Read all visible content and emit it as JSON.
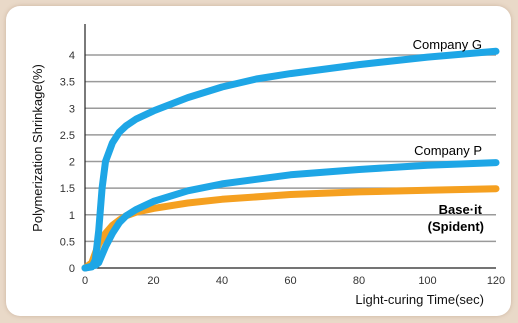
{
  "chart_data": {
    "type": "line",
    "title": "",
    "xlabel": "Light-curing Time(sec)",
    "ylabel": "Polymerization Shrinkage(%)",
    "xlim": [
      0,
      120
    ],
    "ylim": [
      0,
      4.5
    ],
    "x_ticks": [
      0,
      20,
      40,
      60,
      80,
      100,
      120
    ],
    "y_ticks": [
      0,
      0.5,
      1,
      1.5,
      2,
      2.5,
      3,
      3.5,
      4
    ],
    "x_tick_labels": [
      "0",
      "20",
      "40",
      "60",
      "80",
      "100",
      "120"
    ],
    "y_tick_labels": [
      "0",
      "0.5",
      "1",
      "1.5",
      "2",
      "2.5",
      "3",
      "3.5",
      "4"
    ],
    "grid": "horizontal",
    "series": [
      {
        "name": "Company G",
        "color": "#1ea6e6",
        "x": [
          0,
          2,
          3,
          4,
          5,
          6,
          8,
          10,
          12,
          15,
          20,
          30,
          40,
          50,
          60,
          80,
          100,
          120
        ],
        "y": [
          0,
          0.02,
          0.15,
          0.7,
          1.5,
          2.0,
          2.35,
          2.55,
          2.67,
          2.8,
          2.95,
          3.2,
          3.4,
          3.55,
          3.65,
          3.82,
          3.96,
          4.07
        ]
      },
      {
        "name": "Company P",
        "color": "#1ea6e6",
        "x": [
          0,
          3,
          4,
          6,
          8,
          10,
          12,
          15,
          20,
          30,
          40,
          60,
          80,
          100,
          120
        ],
        "y": [
          0,
          0.05,
          0.1,
          0.4,
          0.65,
          0.85,
          0.98,
          1.1,
          1.25,
          1.45,
          1.58,
          1.75,
          1.85,
          1.93,
          1.98
        ]
      },
      {
        "name": "Base·it\n(Spident)",
        "color": "#f5a020",
        "x": [
          0,
          2,
          4,
          6,
          8,
          10,
          12,
          15,
          20,
          30,
          40,
          60,
          80,
          100,
          120
        ],
        "y": [
          0,
          0.1,
          0.45,
          0.65,
          0.8,
          0.9,
          0.98,
          1.05,
          1.12,
          1.22,
          1.29,
          1.38,
          1.43,
          1.46,
          1.49
        ]
      }
    ],
    "series_labels": [
      {
        "text": "Company G",
        "color": "#111111"
      },
      {
        "text": "Company P",
        "color": "#111111"
      },
      {
        "text": "Base·it",
        "color": "#f5a020"
      },
      {
        "text": "(Spident)",
        "color": "#f5a020"
      }
    ]
  }
}
